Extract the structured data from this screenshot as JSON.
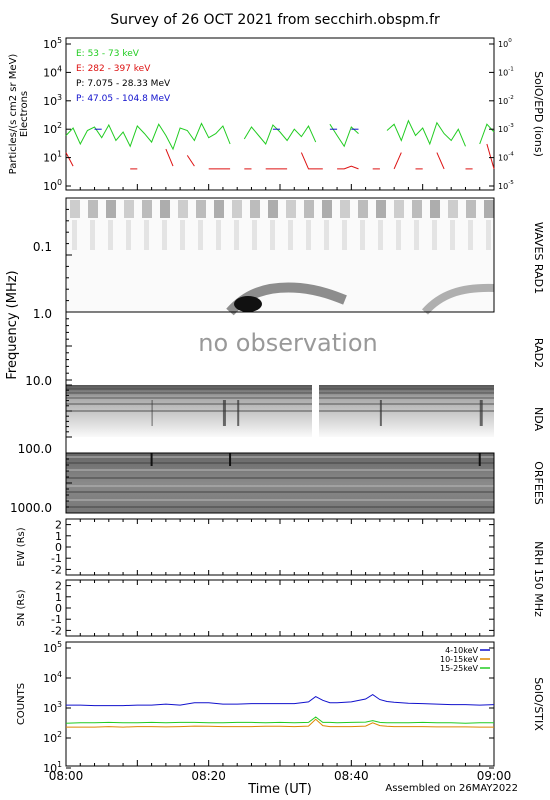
{
  "title": "Survey of 26 OCT 2021 from secchirh.obspm.fr",
  "footer": "Assembled on 26MAY2022",
  "xaxis": {
    "label": "Time (UT)",
    "range": [
      "08:00",
      "09:00"
    ],
    "ticks": [
      "08:00",
      "08:20",
      "08:40",
      "09:00"
    ]
  },
  "no_observation_text": "no observation",
  "chart_data": [
    {
      "type": "line",
      "panel": "SolO/EPD",
      "right_label": "SolO/EPD (ions)",
      "ylabel": [
        "Particles/(s cm2 sr MeV)",
        "Electrons"
      ],
      "yscale": "log",
      "ylim": [
        0.5,
        100000
      ],
      "yticks": [
        "10^0",
        "10^1",
        "10^2",
        "10^3",
        "10^4",
        "10^5"
      ],
      "right_yticks": [
        "10^-5",
        "10^-4",
        "10^-3",
        "10^-2",
        "10^-1",
        "10^0"
      ],
      "legend": [
        "E: 53 - 73 keV",
        "E: 282 - 397 keV",
        "P: 7.075 - 28.33 MeV",
        "P: 47.05 - 104.8 MeV"
      ],
      "colors": [
        "#22cc22",
        "#dd1111",
        "#000000",
        "#1111cc"
      ],
      "series": [
        {
          "name": "E: 53 - 73 keV",
          "x": [
            0,
            1,
            2,
            3,
            4,
            5,
            6,
            7,
            8,
            9,
            10,
            11,
            12,
            13,
            14,
            15,
            16,
            17,
            18,
            19,
            20,
            21,
            22,
            23,
            24,
            25,
            26,
            27,
            28,
            29,
            30,
            31,
            32,
            33,
            34,
            35,
            36,
            37,
            38,
            39,
            40,
            41,
            42,
            43,
            44,
            45,
            46,
            47,
            48,
            49,
            50,
            51,
            52,
            53,
            54,
            55,
            56,
            57,
            58,
            59,
            60
          ],
          "y": [
            60,
            110,
            30,
            90,
            120,
            50,
            140,
            40,
            80,
            25,
            130,
            70,
            35,
            150,
            60,
            20,
            110,
            90,
            40,
            160,
            50,
            70,
            130,
            30,
            null,
            45,
            120,
            60,
            30,
            140,
            80,
            40,
            100,
            55,
            130,
            35,
            null,
            150,
            60,
            25,
            120,
            70,
            null,
            null,
            null,
            90,
            150,
            40,
            200,
            60,
            110,
            30,
            170,
            70,
            40,
            100,
            25,
            null,
            30,
            150,
            80
          ]
        },
        {
          "name": "E: 282 - 397 keV",
          "x": [
            0,
            1,
            9,
            10,
            14,
            15,
            17,
            18,
            20,
            21,
            22,
            23,
            25,
            26,
            28,
            29,
            30,
            31,
            33,
            34,
            35,
            36,
            38,
            39,
            40,
            41,
            43,
            44,
            46,
            47,
            49,
            50,
            52,
            53,
            56,
            57,
            59,
            60
          ],
          "y": [
            15,
            5,
            4,
            4,
            20,
            5,
            12,
            5,
            4,
            4,
            4,
            4,
            4,
            4,
            4,
            4,
            4,
            4,
            15,
            4,
            4,
            4,
            4,
            4,
            5,
            4,
            4,
            4,
            4,
            15,
            4,
            4,
            15,
            4,
            4,
            4,
            30,
            4
          ]
        },
        {
          "name": "P: 47.05 - 104.8 MeV",
          "x": [
            4,
            5,
            29,
            30,
            37,
            38,
            40,
            41
          ],
          "y": [
            100,
            100,
            100,
            100,
            100,
            100,
            100,
            100
          ]
        }
      ]
    },
    {
      "type": "heatmap",
      "panel": "WAVES RAD1",
      "right_label": "WAVES RAD1",
      "ylabel": "Frequency (MHz)",
      "yscale": "log",
      "yticks": [
        "0.1",
        "1.0"
      ],
      "features": [
        {
          "kind": "type III burst",
          "start_min": 25,
          "end_min": 38
        },
        {
          "kind": "type III burst",
          "start_min": 52,
          "end_min": 60
        }
      ]
    },
    {
      "type": "heatmap",
      "panel": "RAD2",
      "right_label": "RAD2",
      "status": "no observation",
      "yticks": [
        "10.0"
      ]
    },
    {
      "type": "heatmap",
      "panel": "NDA",
      "right_label": "NDA",
      "data_gap_minutes": [
        35.5,
        36.5
      ],
      "yticks": [
        "100.0"
      ]
    },
    {
      "type": "heatmap",
      "panel": "ORFEES",
      "right_label": "ORFEES",
      "yticks": [
        "1000.0"
      ]
    },
    {
      "type": "line",
      "panel": "NRH 150 MHz (EW)",
      "right_label": "NRH 150 MHz",
      "ylabel": "EW (Rs)",
      "ylim": [
        -2.5,
        2.5
      ],
      "yticks": [
        "2",
        "1",
        "0",
        "-1",
        "-2"
      ],
      "series": []
    },
    {
      "type": "line",
      "panel": "NRH 150 MHz (SN)",
      "ylabel": "SN (Rs)",
      "ylim": [
        -2.5,
        2.5
      ],
      "yticks": [
        "2",
        "1",
        "0",
        "-1",
        "-2"
      ],
      "series": []
    },
    {
      "type": "line",
      "panel": "SolO/STIX",
      "right_label": "SolO/STIX",
      "ylabel": "COUNTS",
      "yscale": "log",
      "ylim": [
        10,
        100000
      ],
      "yticks": [
        "10^1",
        "10^2",
        "10^3",
        "10^4",
        "10^5"
      ],
      "legend": [
        "4-10keV",
        "10-15keV",
        "15-25keV"
      ],
      "colors": [
        "#1111cc",
        "#dd8800",
        "#22cc22"
      ],
      "x": [
        0,
        2,
        4,
        6,
        8,
        10,
        12,
        14,
        16,
        18,
        20,
        22,
        24,
        26,
        28,
        30,
        32,
        34,
        35,
        36,
        37,
        38,
        40,
        42,
        43,
        44,
        45,
        46,
        48,
        50,
        52,
        54,
        56,
        58,
        60
      ],
      "series": [
        {
          "name": "4-10keV",
          "values": [
            1250,
            1250,
            1200,
            1200,
            1200,
            1250,
            1250,
            1350,
            1250,
            1500,
            1500,
            1350,
            1350,
            1400,
            1400,
            1400,
            1400,
            1600,
            2400,
            1800,
            1500,
            1500,
            1600,
            2000,
            2800,
            1900,
            1650,
            1550,
            1450,
            1400,
            1350,
            1300,
            1300,
            1250,
            1300
          ]
        },
        {
          "name": "10-15keV",
          "values": [
            230,
            230,
            230,
            240,
            230,
            240,
            240,
            235,
            240,
            250,
            245,
            240,
            240,
            240,
            245,
            245,
            240,
            250,
            420,
            260,
            240,
            240,
            240,
            250,
            320,
            260,
            245,
            240,
            240,
            240,
            235,
            235,
            235,
            230,
            230
          ]
        },
        {
          "name": "15-25keV",
          "values": [
            310,
            320,
            320,
            330,
            320,
            320,
            330,
            320,
            330,
            330,
            320,
            320,
            330,
            330,
            320,
            330,
            320,
            330,
            500,
            330,
            330,
            320,
            330,
            340,
            380,
            330,
            320,
            320,
            320,
            330,
            320,
            320,
            310,
            320,
            320
          ]
        }
      ]
    }
  ]
}
